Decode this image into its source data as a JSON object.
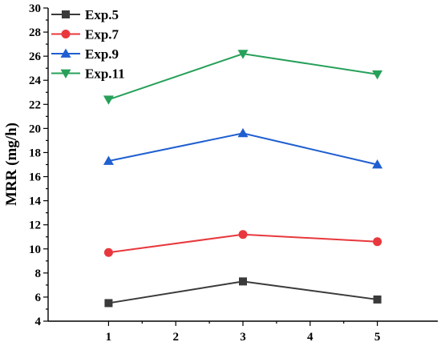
{
  "chart_data": {
    "type": "line",
    "xlabel": "",
    "ylabel": "MRR (mg/h)",
    "x": [
      1,
      3,
      5
    ],
    "xlim": [
      0.1,
      5.9
    ],
    "ylim": [
      4,
      30
    ],
    "xticks": [
      1,
      2,
      3,
      4,
      5
    ],
    "yticks": [
      4,
      6,
      8,
      10,
      12,
      14,
      16,
      18,
      20,
      22,
      24,
      26,
      28,
      30
    ],
    "grid": false,
    "legend_position": "top-left",
    "series": [
      {
        "name": "Exp.5",
        "values": [
          5.5,
          7.3,
          5.8
        ],
        "color": "#3a3a3a",
        "marker": "square"
      },
      {
        "name": "Exp.7",
        "values": [
          9.7,
          11.2,
          10.6
        ],
        "color": "#e8383d",
        "marker": "circle"
      },
      {
        "name": "Exp.9",
        "values": [
          17.3,
          19.6,
          17.0
        ],
        "color": "#1f5fd0",
        "marker": "triangle-up"
      },
      {
        "name": "Exp.11",
        "values": [
          22.4,
          26.2,
          24.5
        ],
        "color": "#27a05a",
        "marker": "triangle-down"
      }
    ]
  }
}
